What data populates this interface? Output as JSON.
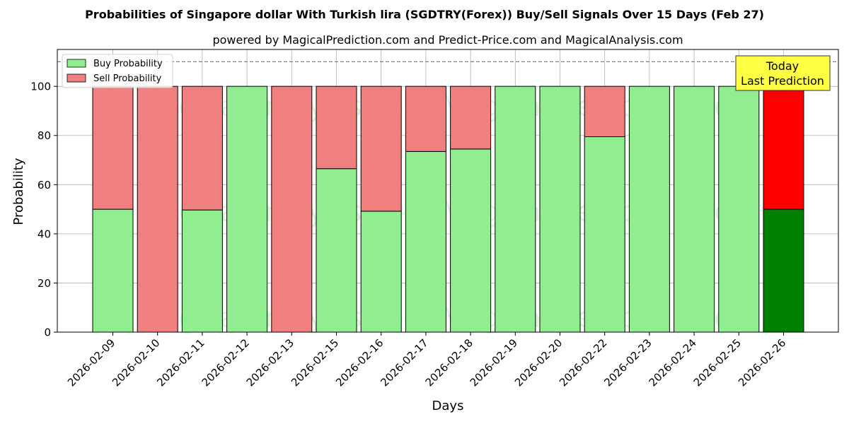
{
  "chart_data": {
    "type": "bar",
    "stacked": true,
    "title": "Probabilities of Singapore dollar With Turkish lira (SGDTRY(Forex)) Buy/Sell Signals Over 15 Days (Feb 27)",
    "subtitle": "powered by MagicalPrediction.com and Predict-Price.com and MagicalAnalysis.com",
    "xlabel": "Days",
    "ylabel": "Probability",
    "ylim": [
      0,
      115
    ],
    "yticks": [
      0,
      20,
      40,
      60,
      80,
      100
    ],
    "reference_line": 110,
    "grid": true,
    "legend_position": "top-left",
    "categories": [
      "2026-02-09",
      "2026-02-10",
      "2026-02-11",
      "2026-02-12",
      "2026-02-13",
      "2026-02-15",
      "2026-02-16",
      "2026-02-17",
      "2026-02-18",
      "2026-02-19",
      "2026-02-20",
      "2026-02-22",
      "2026-02-23",
      "2026-02-24",
      "2026-02-25",
      "2026-02-26"
    ],
    "series": [
      {
        "name": "Buy Probability",
        "color": "#90ee90",
        "values": [
          50,
          0,
          49.7,
          100,
          0,
          66.5,
          49.2,
          73.5,
          74.5,
          100,
          100,
          79.5,
          100,
          100,
          100,
          50
        ]
      },
      {
        "name": "Sell Probability",
        "color": "#f08080",
        "values": [
          50,
          100,
          50.3,
          0,
          100,
          33.5,
          50.8,
          26.5,
          25.5,
          0,
          0,
          20.5,
          0,
          0,
          0,
          50
        ]
      }
    ],
    "highlight": {
      "index": 15,
      "buy_color": "#008000",
      "sell_color": "#ff0000"
    },
    "annotation": {
      "line1": "Today",
      "line2": "Last Prediction",
      "color": "#ffff44"
    },
    "watermark": "MagicalAnalysis.com   MagicalPrediction.com"
  }
}
